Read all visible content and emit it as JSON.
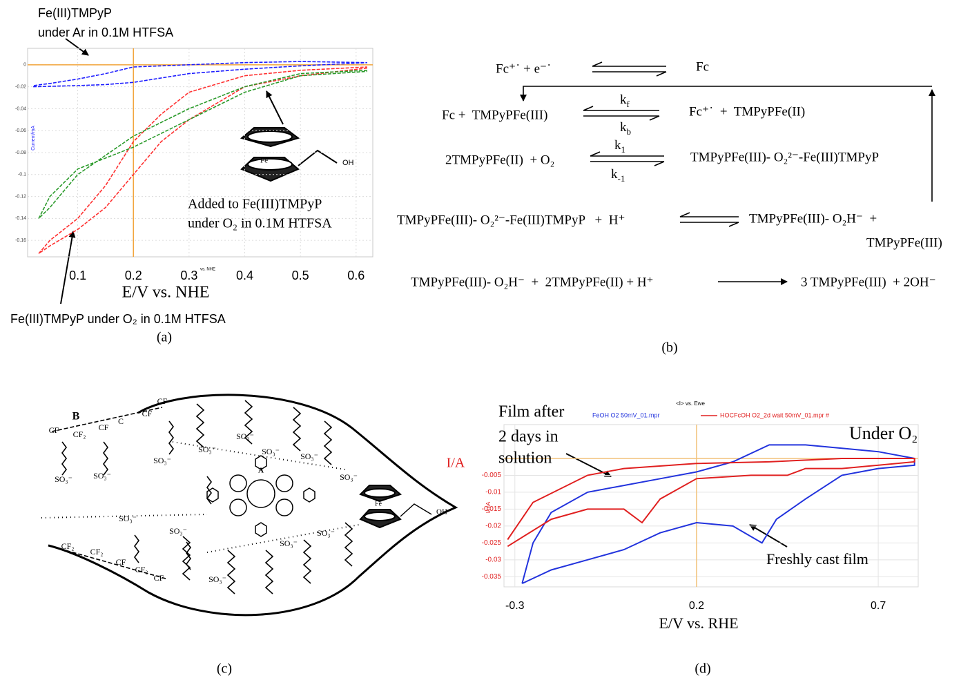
{
  "chart_data": [
    {
      "type": "line",
      "label": "(a)",
      "xlabel": "E/V vs. NHE",
      "ylabel": "Current/mA",
      "xlim": [
        0.01,
        0.63
      ],
      "ylim": [
        -0.175,
        0.015
      ],
      "xticks": [
        0.1,
        0.2,
        0.3,
        0.4,
        0.5,
        0.6
      ],
      "yticks": [
        0,
        -0.02,
        -0.04,
        -0.06,
        -0.08,
        -0.1,
        -0.12,
        -0.14,
        -0.16
      ],
      "grid": true,
      "crosshair": {
        "x": 0.2,
        "y": 0,
        "color": "#f2a43a"
      },
      "annotations": [
        "Fe(III)TMPyP",
        "under Ar in 0.1M HTFSA",
        "Added to Fe(III)TMPyP",
        "under O₂ in 0.1M HTFSA",
        "Fe(III)TMPyP under O₂ in 0.1M HTFSA",
        "vs. NHE",
        "Fe",
        "OH"
      ],
      "series": [
        {
          "color": "#1c1cff",
          "dashed": true,
          "x": [
            0.02,
            0.1,
            0.15,
            0.2,
            0.3,
            0.4,
            0.5,
            0.62,
            0.5,
            0.4,
            0.3,
            0.2,
            0.15,
            0.1,
            0.05,
            0.02
          ],
          "values": [
            -0.02,
            -0.019,
            -0.018,
            -0.016,
            -0.008,
            -0.004,
            -0.001,
            0.002,
            0.003,
            0.002,
            0.0,
            -0.002,
            -0.008,
            -0.013,
            -0.017,
            -0.019
          ]
        },
        {
          "color": "#ff3030",
          "dashed": true,
          "x": [
            0.62,
            0.5,
            0.4,
            0.3,
            0.25,
            0.2,
            0.15,
            0.1,
            0.05,
            0.03,
            0.05,
            0.1,
            0.15,
            0.2,
            0.25,
            0.3,
            0.4,
            0.5,
            0.62
          ],
          "values": [
            -0.003,
            -0.01,
            -0.02,
            -0.05,
            -0.07,
            -0.1,
            -0.13,
            -0.15,
            -0.165,
            -0.172,
            -0.16,
            -0.14,
            -0.11,
            -0.07,
            -0.045,
            -0.025,
            -0.01,
            -0.005,
            -0.002
          ]
        },
        {
          "color": "#2a9a2a",
          "dashed": true,
          "x": [
            0.62,
            0.5,
            0.4,
            0.3,
            0.2,
            0.1,
            0.05,
            0.03,
            0.05,
            0.1,
            0.2,
            0.3,
            0.4,
            0.5,
            0.62
          ],
          "values": [
            -0.005,
            -0.008,
            -0.02,
            -0.04,
            -0.065,
            -0.1,
            -0.13,
            -0.14,
            -0.12,
            -0.095,
            -0.075,
            -0.05,
            -0.025,
            -0.01,
            -0.006
          ]
        }
      ]
    },
    {
      "type": "line",
      "label": "(d)",
      "title": "<I> vs. Ewe",
      "xlabel": "E/V vs. RHE",
      "ylabel": "I/A",
      "xlim": [
        -0.33,
        0.81
      ],
      "ylim": [
        -0.038,
        0.01
      ],
      "xticks": [
        -0.3,
        0.2,
        0.7
      ],
      "yticks": [
        -0.005,
        -0.01,
        -0.015,
        -0.02,
        -0.025,
        -0.03,
        -0.035
      ],
      "grid": true,
      "crosshair": {
        "x": 0.2,
        "y": 0,
        "color": "#f2c27a"
      },
      "annotations": [
        "Film after",
        "2 days in",
        "solution",
        "Under O₂",
        "Freshly cast film",
        "I/mA"
      ],
      "series": [
        {
          "name": "FeOH O2 50mV_01.mpr",
          "color": "#2233dd",
          "x": [
            -0.28,
            -0.25,
            -0.2,
            -0.1,
            0,
            0.1,
            0.2,
            0.3,
            0.4,
            0.5,
            0.6,
            0.7,
            0.8,
            0.8,
            0.7,
            0.6,
            0.5,
            0.42,
            0.38,
            0.3,
            0.2,
            0.1,
            0,
            -0.1,
            -0.2,
            -0.28
          ],
          "values": [
            -0.037,
            -0.025,
            -0.016,
            -0.01,
            -0.008,
            -0.006,
            -0.004,
            -0.001,
            0.004,
            0.004,
            0.003,
            0.002,
            0.0,
            -0.002,
            -0.003,
            -0.005,
            -0.012,
            -0.018,
            -0.025,
            -0.02,
            -0.019,
            -0.022,
            -0.027,
            -0.03,
            -0.033,
            -0.037
          ]
        },
        {
          "name": "HOCFcOH O2_2d wait 50mV_01.mpr #",
          "color": "#e02020",
          "x": [
            -0.32,
            -0.25,
            -0.1,
            0,
            0.2,
            0.4,
            0.6,
            0.8,
            0.8,
            0.6,
            0.5,
            0.45,
            0.35,
            0.2,
            0.1,
            0.05,
            0,
            -0.1,
            -0.2,
            -0.32
          ],
          "values": [
            -0.024,
            -0.013,
            -0.005,
            -0.003,
            -0.0015,
            -0.001,
            0.0,
            0.0,
            -0.001,
            -0.003,
            -0.003,
            -0.005,
            -0.005,
            -0.006,
            -0.012,
            -0.019,
            -0.015,
            -0.015,
            -0.018,
            -0.026
          ]
        }
      ]
    }
  ],
  "scheme": {
    "label": "(b)",
    "reactions": [
      {
        "left": "Fc⁺˙ + e⁻˙",
        "right": "Fc"
      },
      {
        "left": "Fc +  TMPyPFe(III)",
        "forward": {
          "symbol": "k",
          "subscript": "f"
        },
        "backward": {
          "symbol": "k",
          "subscript": "b"
        },
        "right": "Fc⁺˙  +  TMPyPFe(II)"
      },
      {
        "left": "2TMPyPFe(II)  + O₂",
        "forward": {
          "symbol": "k",
          "subscript": "1"
        },
        "backward": {
          "symbol": "k",
          "subscript": "-1"
        },
        "right": "TMPyPFe(III)- O₂²⁻-Fe(III)TMPyP"
      },
      {
        "left": "TMPyPFe(III)- O₂²⁻-Fe(III)TMPyP   +  H⁺",
        "right": "TMPyPFe(III)- O₂H⁻  +",
        "right_2": "TMPyPFe(III)"
      },
      {
        "left": "TMPyPFe(III)- O₂H⁻  +  2TMPyPFe(II) + H⁺",
        "right": "3 TMPyPFe(III)  + 2OH⁻"
      }
    ]
  },
  "diagram": {
    "label": "(c)",
    "labels": [
      "B",
      "CF",
      "CF₂",
      "CF",
      "C",
      "CF",
      "CF",
      "SO₃⁻",
      "SO₃⁻",
      "SO₃⁻",
      "SO₃⁻",
      "SO₃⁻",
      "SO₃⁻",
      "SO₃⁻",
      "SO₃⁻",
      "A",
      "SO₃⁻",
      "SO₃⁻",
      "SO₃⁻",
      "SO₃⁻",
      "SO₃⁻",
      "Fe",
      "OH",
      "CF₂",
      "CF₂",
      "CF",
      "CF₂",
      "CF"
    ]
  }
}
